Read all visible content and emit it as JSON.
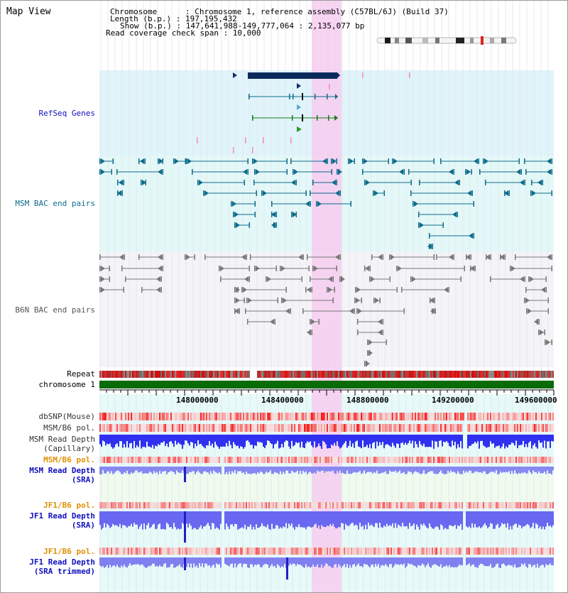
{
  "title": "Map View",
  "header": {
    "chromosome_row": "Chromosome      : Chromosome 1, reference assembly (C57BL/6J) (Build 37)",
    "length_row": "Length (b.p.) : 197,195,432",
    "show_row": "Show (b.p.) : 147,641,988-149,777,064 : 2,135,077 bp",
    "coverage_row": "Read coverage check span : 10,000"
  },
  "tracks": {
    "refseq": "RefSeq Genes",
    "msm_bac": "MSM BAC end pairs",
    "b6n_bac": "B6N BAC end pairs",
    "repeat": "Repeat",
    "chromosome": "chromosome 1",
    "dbsnp": "dbSNP(Mouse)",
    "msm_b6_pol_1": "MSM/B6 pol.",
    "msm_depth_cap_1": "MSM Read Depth",
    "msm_depth_cap_2": "(Capillary)",
    "msm_b6_pol_2": "MSM/B6 pol.",
    "msm_depth_sra_1": "MSM Read Depth",
    "msm_depth_sra_2": "(SRA)",
    "jf1_b6_pol_1": "JF1/B6 pol.",
    "jf1_depth_sra_1": "JF1 Read Depth",
    "jf1_depth_sra_2": "(SRA)",
    "jf1_b6_pol_2": "JF1/B6 pol.",
    "jf1_depth_trim_1": "JF1 Read Depth",
    "jf1_depth_trim_2": "(SRA trimmed)"
  },
  "axis": {
    "ticks": [
      "148000000",
      "148400000",
      "148800000",
      "149200000",
      "149600000"
    ]
  },
  "colors": {
    "refseq_label": "#1010c0",
    "msm_bac_label": "#0e6b8c",
    "b6n_label": "#555555",
    "pol_orange": "#e09000",
    "depth_blue": "#0000c8",
    "highlight": "#f6cdf0",
    "chromosome_green": "#0a6b0a"
  }
}
